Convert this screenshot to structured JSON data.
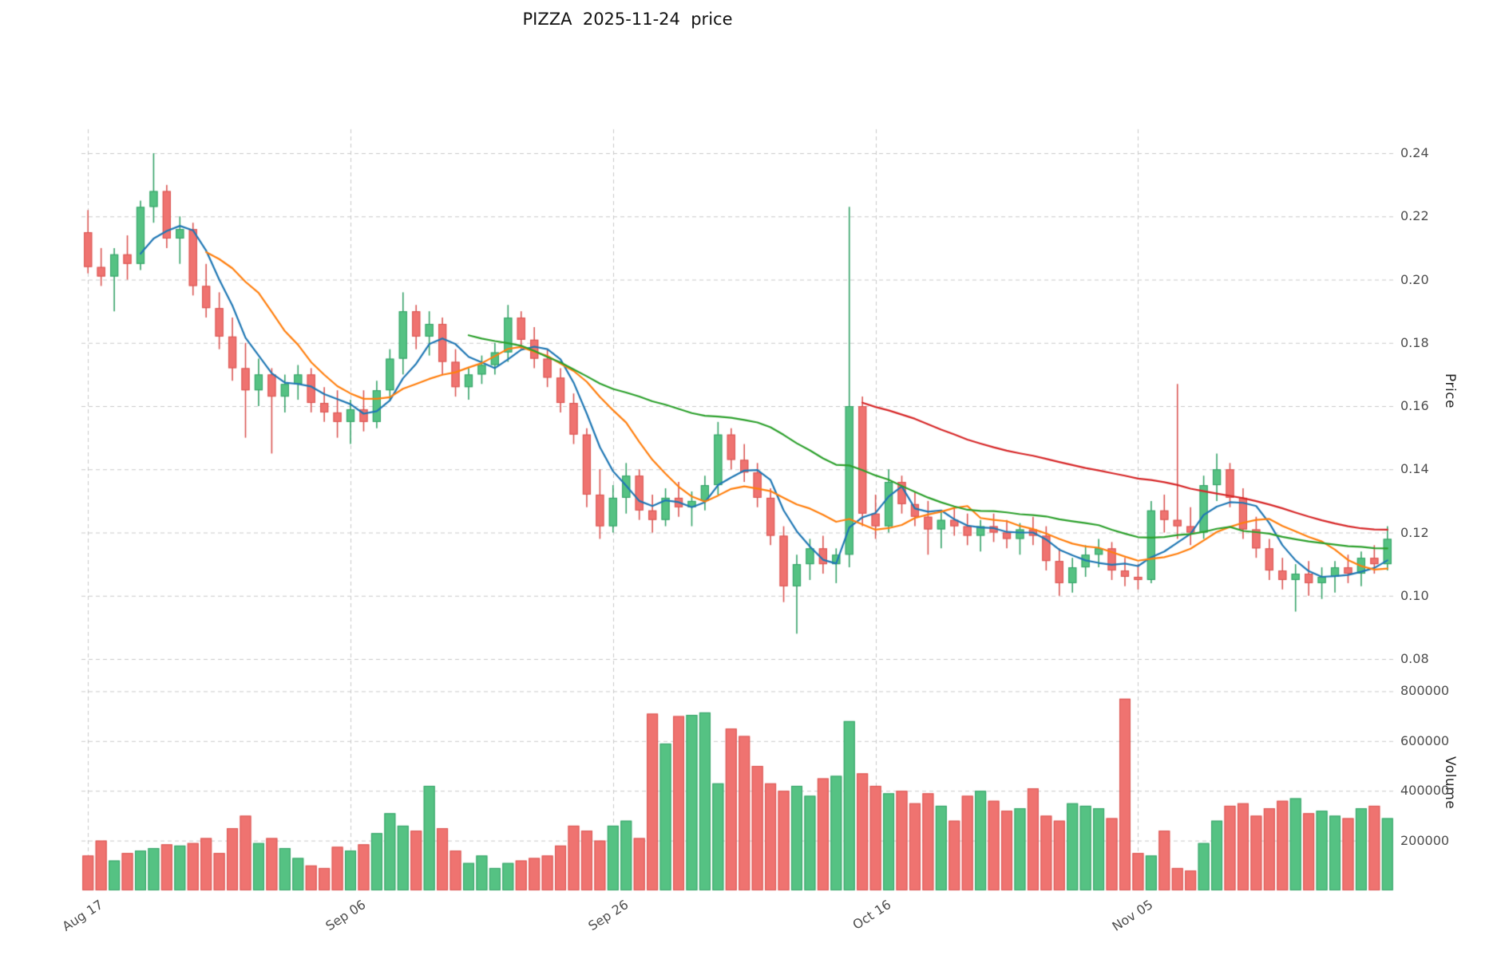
{
  "title": "PIZZA  2025-11-24  price",
  "axes": {
    "price_label": "Price",
    "volume_label": "Volume",
    "price_ticks": [
      {
        "value": 0.08,
        "label": "0.08"
      },
      {
        "value": 0.1,
        "label": "0.10"
      },
      {
        "value": 0.12,
        "label": "0.12"
      },
      {
        "value": 0.14,
        "label": "0.14"
      },
      {
        "value": 0.16,
        "label": "0.16"
      },
      {
        "value": 0.18,
        "label": "0.18"
      },
      {
        "value": 0.2,
        "label": "0.20"
      },
      {
        "value": 0.22,
        "label": "0.22"
      },
      {
        "value": 0.24,
        "label": "0.24"
      }
    ],
    "volume_ticks": [
      {
        "value": 200000,
        "label": "200000"
      },
      {
        "value": 400000,
        "label": "400000"
      },
      {
        "value": 600000,
        "label": "600000"
      },
      {
        "value": 800000,
        "label": "800000"
      }
    ],
    "x_ticks": [
      {
        "index": 0,
        "label": "Aug 17"
      },
      {
        "index": 20,
        "label": "Sep 06"
      },
      {
        "index": 40,
        "label": "Sep 26"
      },
      {
        "index": 60,
        "label": "Oct 16"
      },
      {
        "index": 80,
        "label": "Nov 05"
      }
    ]
  },
  "colors": {
    "up": "#55c283",
    "up_edge": "#35a268",
    "down": "#ef7370",
    "down_edge": "#da5552",
    "grid": "#c9c9c9",
    "tick_text": "#4d4d4d",
    "ma_short": "#1f77b4",
    "ma_mid": "#ff7f0e",
    "ma_long": "#2ca02c",
    "ma_xlong": "#d62728"
  },
  "chart_data": {
    "type": "candlestick+volume",
    "symbol": "PIZZA",
    "as_of_date": "2025-11-24",
    "title": "PIZZA  2025-11-24  price",
    "price_axis_range": [
      0.077,
      0.248
    ],
    "volume_axis_range": [
      0,
      850000
    ],
    "grid": true,
    "moving_averages": [
      {
        "name": "MA5",
        "window": 5,
        "color": "#1f77b4"
      },
      {
        "name": "MA10",
        "window": 10,
        "color": "#ff7f0e"
      },
      {
        "name": "MA30",
        "window": 30,
        "color": "#2ca02c"
      },
      {
        "name": "MA60",
        "window": 60,
        "color": "#d62728"
      }
    ],
    "columns": [
      "date",
      "open",
      "high",
      "low",
      "close",
      "volume"
    ],
    "candles": [
      [
        "2025-08-17",
        0.215,
        0.222,
        0.202,
        0.204,
        140000
      ],
      [
        "2025-08-18",
        0.204,
        0.21,
        0.198,
        0.201,
        200000
      ],
      [
        "2025-08-19",
        0.201,
        0.21,
        0.19,
        0.208,
        120000
      ],
      [
        "2025-08-20",
        0.208,
        0.214,
        0.2,
        0.205,
        150000
      ],
      [
        "2025-08-21",
        0.205,
        0.225,
        0.203,
        0.223,
        160000
      ],
      [
        "2025-08-22",
        0.223,
        0.24,
        0.218,
        0.228,
        170000
      ],
      [
        "2025-08-23",
        0.228,
        0.23,
        0.21,
        0.213,
        185000
      ],
      [
        "2025-08-24",
        0.213,
        0.22,
        0.205,
        0.216,
        180000
      ],
      [
        "2025-08-25",
        0.216,
        0.218,
        0.195,
        0.198,
        190000
      ],
      [
        "2025-08-26",
        0.198,
        0.205,
        0.188,
        0.191,
        210000
      ],
      [
        "2025-08-27",
        0.191,
        0.196,
        0.178,
        0.182,
        150000
      ],
      [
        "2025-08-28",
        0.182,
        0.188,
        0.168,
        0.172,
        250000
      ],
      [
        "2025-08-29",
        0.172,
        0.18,
        0.15,
        0.165,
        300000
      ],
      [
        "2025-08-30",
        0.165,
        0.175,
        0.16,
        0.17,
        190000
      ],
      [
        "2025-08-31",
        0.17,
        0.172,
        0.145,
        0.163,
        210000
      ],
      [
        "2025-09-01",
        0.163,
        0.17,
        0.158,
        0.167,
        170000
      ],
      [
        "2025-09-02",
        0.167,
        0.173,
        0.162,
        0.17,
        130000
      ],
      [
        "2025-09-03",
        0.17,
        0.172,
        0.158,
        0.161,
        100000
      ],
      [
        "2025-09-04",
        0.161,
        0.166,
        0.155,
        0.158,
        90000
      ],
      [
        "2025-09-05",
        0.158,
        0.165,
        0.15,
        0.155,
        175000
      ],
      [
        "2025-09-06",
        0.155,
        0.162,
        0.148,
        0.159,
        160000
      ],
      [
        "2025-09-07",
        0.159,
        0.165,
        0.152,
        0.155,
        185000
      ],
      [
        "2025-09-08",
        0.155,
        0.168,
        0.153,
        0.165,
        230000
      ],
      [
        "2025-09-09",
        0.165,
        0.178,
        0.162,
        0.175,
        310000
      ],
      [
        "2025-09-10",
        0.175,
        0.196,
        0.17,
        0.19,
        260000
      ],
      [
        "2025-09-11",
        0.19,
        0.192,
        0.178,
        0.182,
        240000
      ],
      [
        "2025-09-12",
        0.182,
        0.19,
        0.176,
        0.186,
        420000
      ],
      [
        "2025-09-13",
        0.186,
        0.188,
        0.17,
        0.174,
        250000
      ],
      [
        "2025-09-14",
        0.174,
        0.178,
        0.163,
        0.166,
        160000
      ],
      [
        "2025-09-15",
        0.166,
        0.172,
        0.162,
        0.17,
        110000
      ],
      [
        "2025-09-16",
        0.17,
        0.176,
        0.167,
        0.173,
        140000
      ],
      [
        "2025-09-17",
        0.173,
        0.18,
        0.17,
        0.177,
        90000
      ],
      [
        "2025-09-18",
        0.177,
        0.192,
        0.174,
        0.188,
        110000
      ],
      [
        "2025-09-19",
        0.188,
        0.19,
        0.178,
        0.181,
        120000
      ],
      [
        "2025-09-20",
        0.181,
        0.185,
        0.172,
        0.175,
        130000
      ],
      [
        "2025-09-21",
        0.175,
        0.178,
        0.166,
        0.169,
        140000
      ],
      [
        "2025-09-22",
        0.169,
        0.172,
        0.158,
        0.161,
        180000
      ],
      [
        "2025-09-23",
        0.161,
        0.164,
        0.148,
        0.151,
        260000
      ],
      [
        "2025-09-24",
        0.151,
        0.153,
        0.128,
        0.132,
        240000
      ],
      [
        "2025-09-25",
        0.132,
        0.14,
        0.118,
        0.122,
        200000
      ],
      [
        "2025-09-26",
        0.122,
        0.135,
        0.12,
        0.131,
        260000
      ],
      [
        "2025-09-27",
        0.131,
        0.142,
        0.126,
        0.138,
        280000
      ],
      [
        "2025-09-28",
        0.138,
        0.14,
        0.124,
        0.127,
        210000
      ],
      [
        "2025-09-29",
        0.127,
        0.132,
        0.12,
        0.124,
        710000
      ],
      [
        "2025-09-30",
        0.124,
        0.134,
        0.122,
        0.131,
        590000
      ],
      [
        "2025-10-01",
        0.131,
        0.136,
        0.125,
        0.128,
        700000
      ],
      [
        "2025-10-02",
        0.128,
        0.133,
        0.122,
        0.13,
        705000
      ],
      [
        "2025-10-03",
        0.13,
        0.138,
        0.127,
        0.135,
        715000
      ],
      [
        "2025-10-04",
        0.135,
        0.155,
        0.132,
        0.151,
        430000
      ],
      [
        "2025-10-05",
        0.151,
        0.153,
        0.14,
        0.143,
        650000
      ],
      [
        "2025-10-06",
        0.143,
        0.148,
        0.136,
        0.139,
        620000
      ],
      [
        "2025-10-07",
        0.139,
        0.142,
        0.128,
        0.131,
        500000
      ],
      [
        "2025-10-08",
        0.131,
        0.134,
        0.116,
        0.119,
        430000
      ],
      [
        "2025-10-09",
        0.119,
        0.122,
        0.098,
        0.103,
        400000
      ],
      [
        "2025-10-10",
        0.103,
        0.113,
        0.088,
        0.11,
        420000
      ],
      [
        "2025-10-11",
        0.11,
        0.118,
        0.105,
        0.115,
        380000
      ],
      [
        "2025-10-12",
        0.115,
        0.119,
        0.107,
        0.11,
        450000
      ],
      [
        "2025-10-13",
        0.11,
        0.115,
        0.104,
        0.113,
        460000
      ],
      [
        "2025-10-14",
        0.113,
        0.223,
        0.109,
        0.16,
        680000
      ],
      [
        "2025-10-15",
        0.16,
        0.163,
        0.122,
        0.126,
        470000
      ],
      [
        "2025-10-16",
        0.126,
        0.132,
        0.118,
        0.122,
        420000
      ],
      [
        "2025-10-17",
        0.122,
        0.14,
        0.12,
        0.136,
        390000
      ],
      [
        "2025-10-18",
        0.136,
        0.138,
        0.126,
        0.129,
        400000
      ],
      [
        "2025-10-19",
        0.129,
        0.133,
        0.122,
        0.125,
        350000
      ],
      [
        "2025-10-20",
        0.125,
        0.13,
        0.113,
        0.121,
        390000
      ],
      [
        "2025-10-21",
        0.121,
        0.127,
        0.115,
        0.124,
        340000
      ],
      [
        "2025-10-22",
        0.124,
        0.128,
        0.119,
        0.122,
        280000
      ],
      [
        "2025-10-23",
        0.122,
        0.126,
        0.116,
        0.119,
        380000
      ],
      [
        "2025-10-24",
        0.119,
        0.124,
        0.114,
        0.122,
        400000
      ],
      [
        "2025-10-25",
        0.122,
        0.126,
        0.117,
        0.12,
        360000
      ],
      [
        "2025-10-26",
        0.12,
        0.124,
        0.115,
        0.118,
        320000
      ],
      [
        "2025-10-27",
        0.118,
        0.123,
        0.113,
        0.121,
        330000
      ],
      [
        "2025-10-28",
        0.121,
        0.125,
        0.116,
        0.119,
        410000
      ],
      [
        "2025-10-29",
        0.119,
        0.122,
        0.108,
        0.111,
        300000
      ],
      [
        "2025-10-30",
        0.111,
        0.115,
        0.1,
        0.104,
        280000
      ],
      [
        "2025-10-31",
        0.104,
        0.112,
        0.101,
        0.109,
        350000
      ],
      [
        "2025-11-01",
        0.109,
        0.116,
        0.106,
        0.113,
        340000
      ],
      [
        "2025-11-02",
        0.113,
        0.118,
        0.109,
        0.115,
        330000
      ],
      [
        "2025-11-03",
        0.115,
        0.117,
        0.105,
        0.108,
        290000
      ],
      [
        "2025-11-04",
        0.108,
        0.112,
        0.103,
        0.106,
        770000
      ],
      [
        "2025-11-05",
        0.106,
        0.11,
        0.102,
        0.105,
        150000
      ],
      [
        "2025-11-06",
        0.105,
        0.13,
        0.104,
        0.127,
        140000
      ],
      [
        "2025-11-07",
        0.127,
        0.132,
        0.12,
        0.124,
        240000
      ],
      [
        "2025-11-08",
        0.124,
        0.167,
        0.118,
        0.122,
        90000
      ],
      [
        "2025-11-09",
        0.122,
        0.128,
        0.116,
        0.12,
        80000
      ],
      [
        "2025-11-10",
        0.12,
        0.138,
        0.118,
        0.135,
        190000
      ],
      [
        "2025-11-11",
        0.135,
        0.145,
        0.13,
        0.14,
        280000
      ],
      [
        "2025-11-12",
        0.14,
        0.142,
        0.128,
        0.131,
        340000
      ],
      [
        "2025-11-13",
        0.131,
        0.134,
        0.118,
        0.121,
        350000
      ],
      [
        "2025-11-14",
        0.121,
        0.125,
        0.112,
        0.115,
        300000
      ],
      [
        "2025-11-15",
        0.115,
        0.118,
        0.105,
        0.108,
        330000
      ],
      [
        "2025-11-16",
        0.108,
        0.112,
        0.102,
        0.105,
        360000
      ],
      [
        "2025-11-17",
        0.105,
        0.11,
        0.095,
        0.107,
        370000
      ],
      [
        "2025-11-18",
        0.107,
        0.111,
        0.1,
        0.104,
        310000
      ],
      [
        "2025-11-19",
        0.104,
        0.109,
        0.099,
        0.106,
        320000
      ],
      [
        "2025-11-20",
        0.106,
        0.111,
        0.101,
        0.109,
        300000
      ],
      [
        "2025-11-21",
        0.109,
        0.113,
        0.104,
        0.107,
        290000
      ],
      [
        "2025-11-22",
        0.107,
        0.114,
        0.103,
        0.112,
        330000
      ],
      [
        "2025-11-23",
        0.112,
        0.116,
        0.107,
        0.11,
        340000
      ],
      [
        "2025-11-24",
        0.11,
        0.122,
        0.108,
        0.118,
        290000
      ]
    ]
  }
}
